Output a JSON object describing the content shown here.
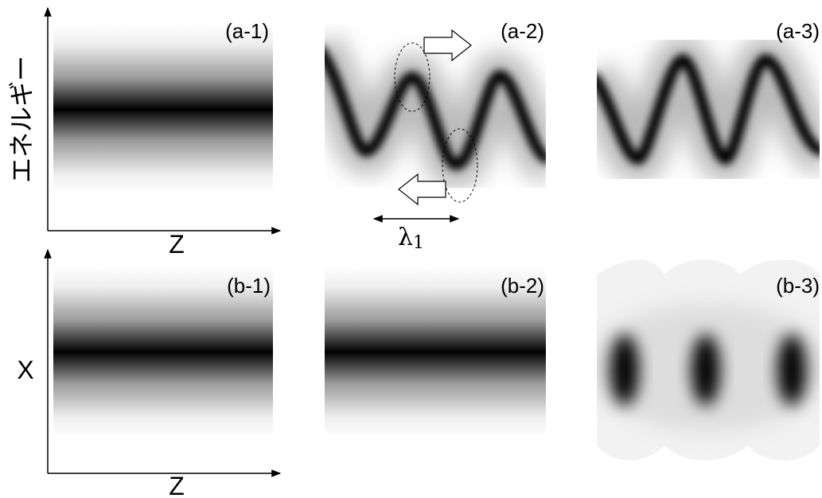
{
  "panels": {
    "a1": "(a-1)",
    "a2": "(a-2)",
    "a3": "(a-3)",
    "b1": "(b-1)",
    "b2": "(b-2)",
    "b3": "(b-3)"
  },
  "axes": {
    "top_y": "エネルギー",
    "top_x": "Z",
    "bottom_y": "X",
    "bottom_x": "Z"
  },
  "wavelength": {
    "symbol": "λ",
    "subscript": "1"
  }
}
